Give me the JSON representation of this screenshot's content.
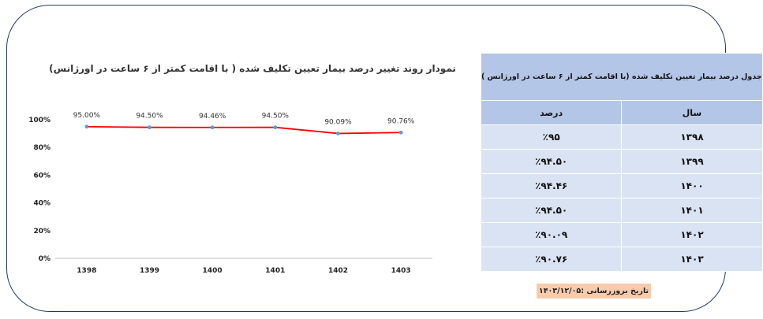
{
  "chart_data": {
    "type": "line",
    "title": "نمودار روند تغییر درصد بیمار تعیین تکلیف شده ( با اقامت کمتر از ۶ ساعت در اورژانس)",
    "categories": [
      "1398",
      "1399",
      "1400",
      "1401",
      "1402",
      "1403"
    ],
    "series": [
      {
        "values": [
          95.0,
          94.5,
          94.46,
          94.5,
          90.09,
          90.76
        ],
        "data_labels": [
          "95.00%",
          "94.50%",
          "94.46%",
          "94.50%",
          "90.09%",
          "90.76%"
        ]
      }
    ],
    "yticks": [
      "0%",
      "20%",
      "40%",
      "60%",
      "80%",
      "100%"
    ],
    "ylim": [
      0,
      100
    ],
    "xlabel": "",
    "ylabel": "",
    "grid": false,
    "line_color": "#ff0000",
    "marker_color": "#5b9bd5"
  },
  "table": {
    "title": "جدول درصد بیمار تعیین تکلیف شده (با اقامت کمتر از ۶ ساعت در اورژانس )",
    "headers": {
      "year": "سال",
      "percent": "درصد"
    },
    "rows": [
      {
        "year": "۱۳۹۸",
        "percent": "٪۹۵"
      },
      {
        "year": "۱۳۹۹",
        "percent": "٪۹۴.۵۰"
      },
      {
        "year": "۱۴۰۰",
        "percent": "٪۹۴.۴۶"
      },
      {
        "year": "۱۴۰۱",
        "percent": "٪۹۴.۵۰"
      },
      {
        "year": "۱۴۰۲",
        "percent": "٪۹۰.۰۹"
      },
      {
        "year": "۱۴۰۳",
        "percent": "٪۹۰.۷۶"
      }
    ]
  },
  "update_note": "تاریخ بروزرسانی :۱۴۰۳/۱۲/۰۵"
}
